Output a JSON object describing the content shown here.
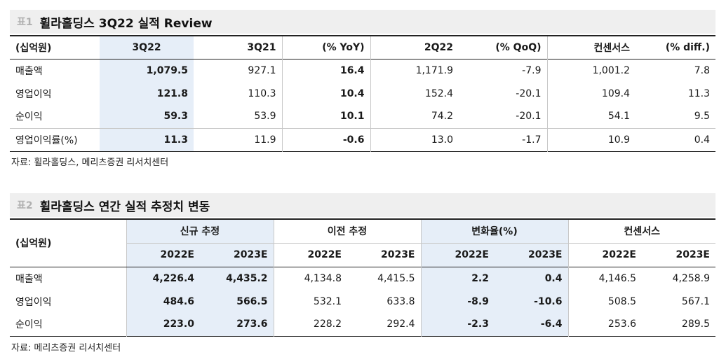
{
  "table1": {
    "tag": "표1",
    "title": "휠라홀딩스 3Q22 실적 Review",
    "headers": [
      "(십억원)",
      "3Q22",
      "3Q21",
      "(% YoY)",
      "2Q22",
      "(% QoQ)",
      "컨센서스",
      "(% diff.)"
    ],
    "rows": [
      {
        "label": "매출액",
        "cells": [
          "1,079.5",
          "927.1",
          "16.4",
          "1,171.9",
          "-7.9",
          "1,001.2",
          "7.8"
        ]
      },
      {
        "label": "영업이익",
        "cells": [
          "121.8",
          "110.3",
          "10.4",
          "152.4",
          "-20.1",
          "109.4",
          "11.3"
        ]
      },
      {
        "label": "순이익",
        "cells": [
          "59.3",
          "53.9",
          "10.1",
          "74.2",
          "-20.1",
          "54.1",
          "9.5"
        ]
      },
      {
        "label": "영업이익률(%)",
        "cells": [
          "11.3",
          "11.9",
          "-0.6",
          "13.0",
          "-1.7",
          "10.9",
          "0.4"
        ]
      }
    ],
    "source": "자료: 휠라홀딩스, 메리츠증권 리서치센터"
  },
  "table2": {
    "tag": "표2",
    "title": "휠라홀딩스 연간 실적 추정치 변동",
    "unit": "(십억원)",
    "groups": [
      "신규 추정",
      "이전 추정",
      "변화율(%)",
      "컨센서스"
    ],
    "years": [
      "2022E",
      "2023E",
      "2022E",
      "2023E",
      "2022E",
      "2023E",
      "2022E",
      "2023E"
    ],
    "rows": [
      {
        "label": "매출액",
        "cells": [
          "4,226.4",
          "4,435.2",
          "4,134.8",
          "4,415.5",
          "2.2",
          "0.4",
          "4,146.5",
          "4,258.9"
        ]
      },
      {
        "label": "영업이익",
        "cells": [
          "484.6",
          "566.5",
          "532.1",
          "633.8",
          "-8.9",
          "-10.6",
          "508.5",
          "567.1"
        ]
      },
      {
        "label": "순이익",
        "cells": [
          "223.0",
          "273.6",
          "228.2",
          "292.4",
          "-2.3",
          "-6.4",
          "253.6",
          "289.5"
        ]
      }
    ],
    "source": "자료: 메리츠증권 리서치센터"
  }
}
